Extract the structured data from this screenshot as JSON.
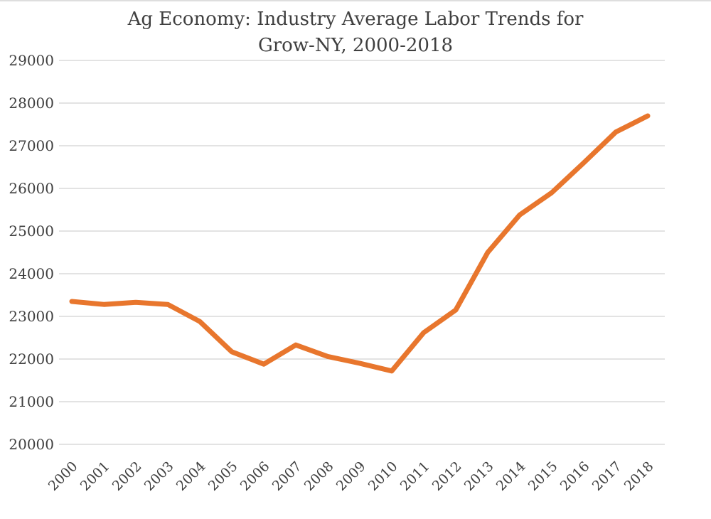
{
  "title": {
    "line1": "Ag Economy: Industry Average Labor Trends for",
    "line2": "Grow-NY, 2000-2018"
  },
  "colors": {
    "line": "#E8762D",
    "grid": "#DADADA",
    "text": "#3F3F3F",
    "top_edge": "#DEDEDE",
    "background": "#FFFFFF"
  },
  "chart_data": {
    "type": "line",
    "title": "Ag Economy: Industry Average Labor Trends for Grow-NY, 2000-2018",
    "x": [
      2000,
      2001,
      2002,
      2003,
      2004,
      2005,
      2006,
      2007,
      2008,
      2009,
      2010,
      2011,
      2012,
      2013,
      2014,
      2015,
      2016,
      2017,
      2018
    ],
    "series": [
      {
        "name": "Industry average labor",
        "values": [
          23350,
          23280,
          23330,
          23280,
          22880,
          22170,
          21880,
          22330,
          22060,
          21900,
          21720,
          22620,
          23150,
          24500,
          25380,
          25900,
          26600,
          27320,
          27700
        ]
      }
    ],
    "xlabel": "",
    "ylabel": "",
    "ylim": [
      20000,
      29000
    ],
    "yticks": [
      20000,
      21000,
      22000,
      23000,
      24000,
      25000,
      26000,
      27000,
      28000,
      29000
    ],
    "ytick_interval": 1000,
    "grid": "horizontal-only",
    "legend_position": "none",
    "x_tick_rotation_deg": 45,
    "line_color": "#E8762D"
  }
}
